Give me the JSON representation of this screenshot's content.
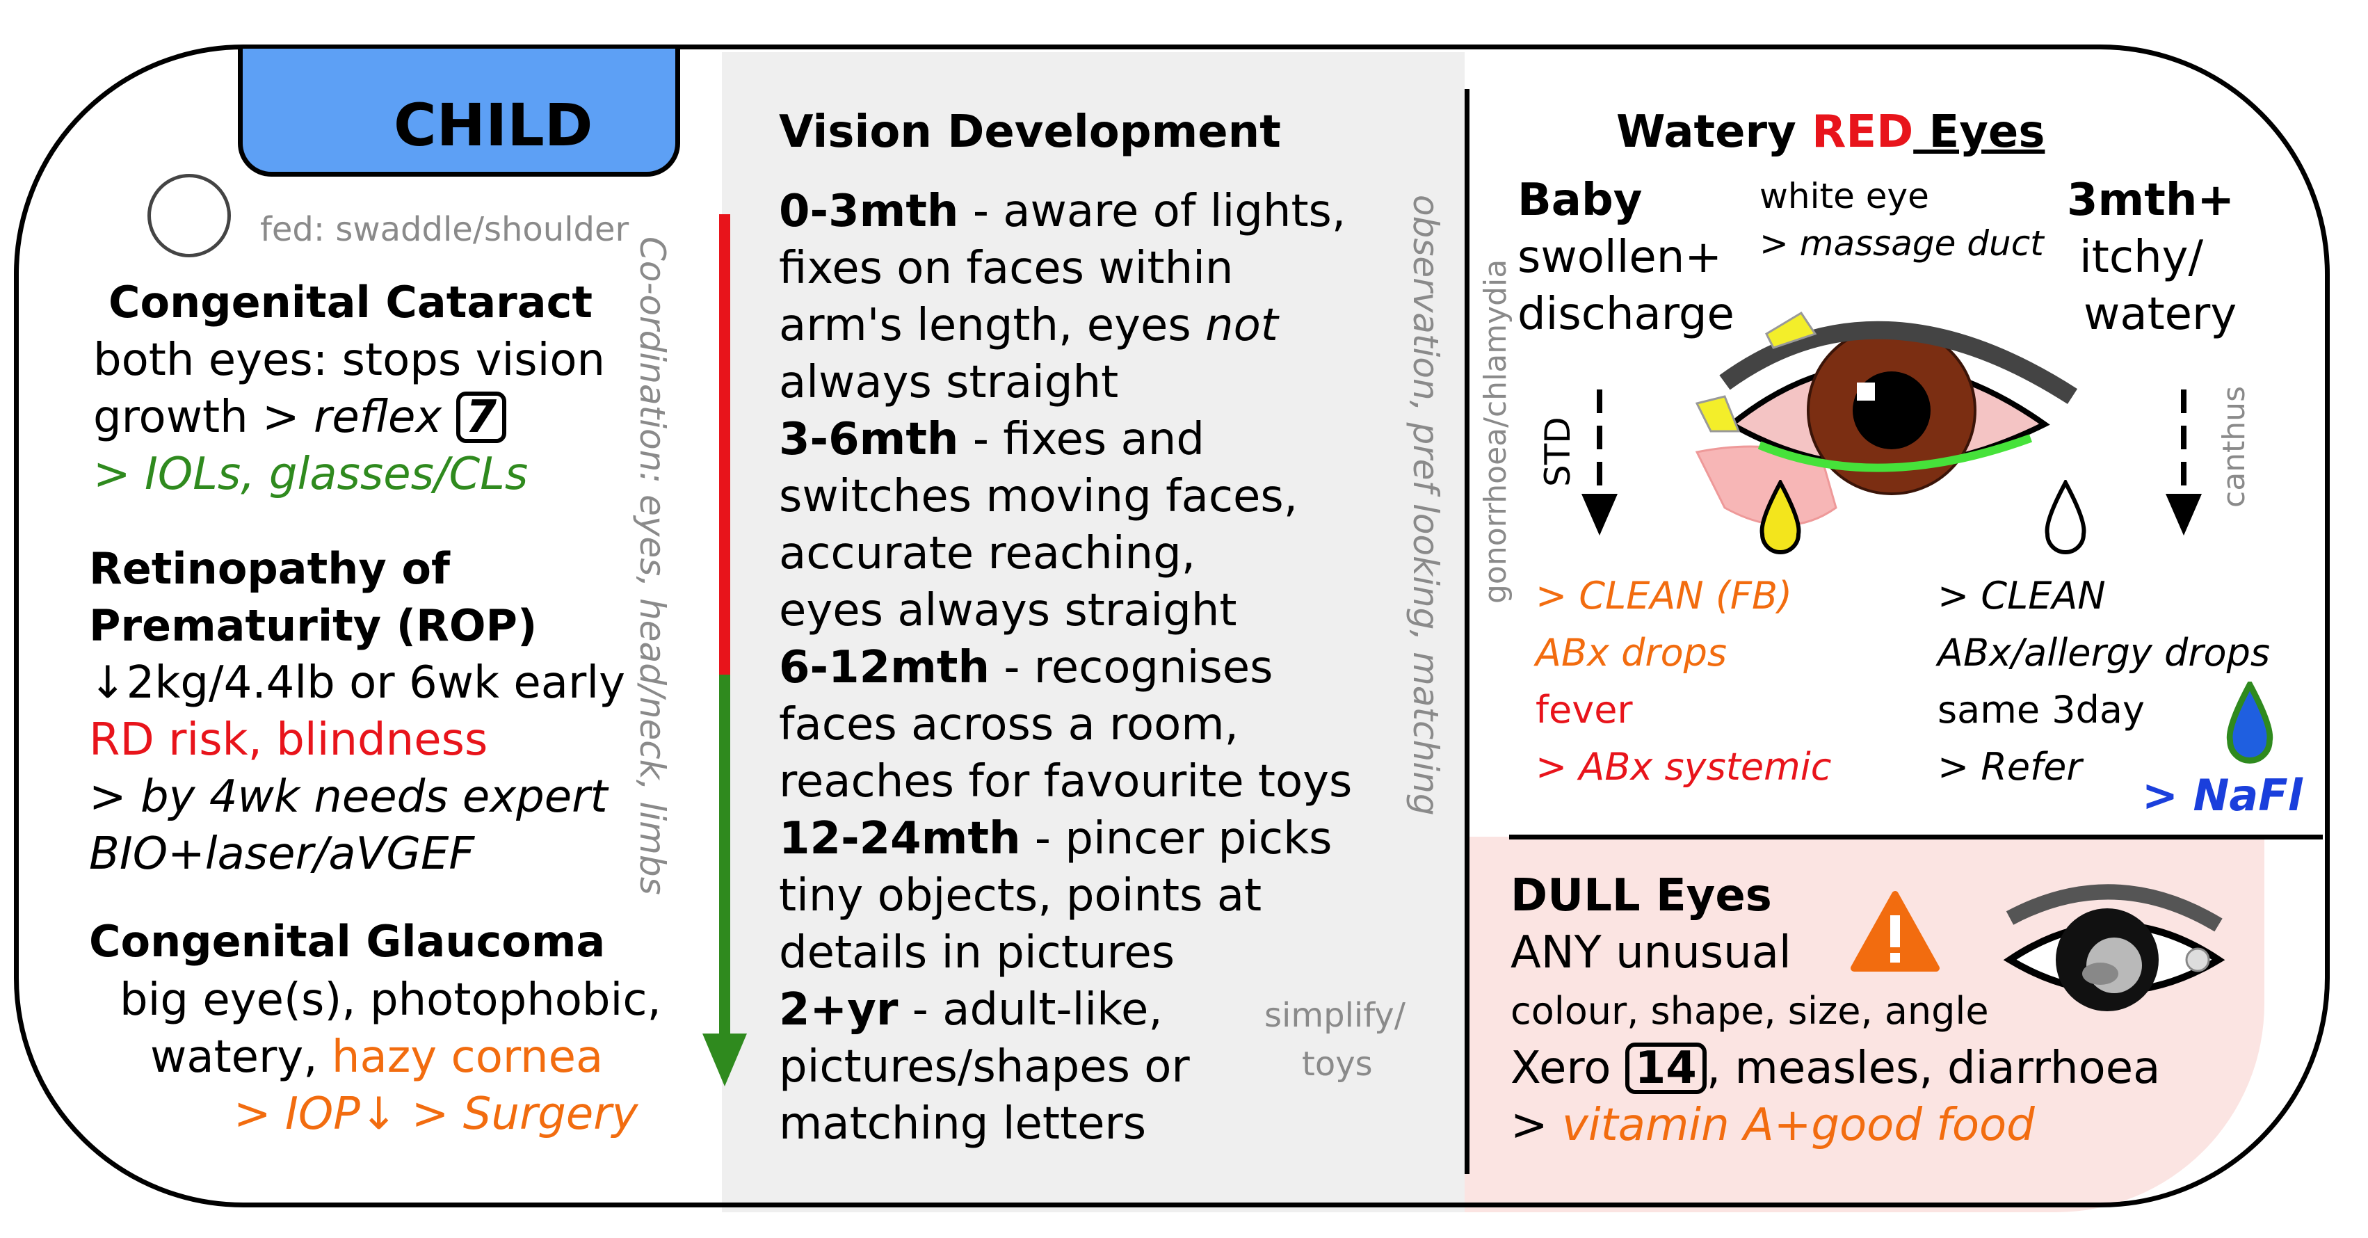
{
  "child_tab": {
    "label": "CHILD"
  },
  "left": {
    "fed_note": "fed: swaddle/shoulder",
    "cataract": {
      "title": "Congenital Cataract",
      "line1": "both eyes: stops vision",
      "line2_prefix": "growth > ",
      "line2_italic": "reflex",
      "line2_box": "7",
      "line3": "> IOLs, glasses/CLs"
    },
    "rop": {
      "title1": "Retinopathy of",
      "title2": "Prematurity (ROP)",
      "line1": "↓2kg/4.4lb or 6wk early",
      "line2": "RD risk, blindness",
      "line3": "> by 4wk needs expert",
      "line4": "BIO+laser/aVGEF"
    },
    "glaucoma": {
      "title": "Congenital Glaucoma",
      "line1": "big eye(s), photophobic,",
      "line2_prefix": "watery, ",
      "line2_colored": "hazy cornea",
      "line3": "> IOP↓ > Surgery"
    },
    "vertical_note": "Co-ordination: eyes, head/neck, limbs"
  },
  "middle": {
    "title": "Vision Development",
    "stages": [
      {
        "age": "0-3mth",
        "lines": [
          " - aware of lights,",
          "fixes on faces within",
          "arm's length, eyes ",
          "always straight"
        ],
        "italic_word": "not"
      },
      {
        "age": "3-6mth",
        "lines": [
          " - fixes and",
          "switches moving faces,",
          "accurate reaching,",
          "eyes always straight"
        ]
      },
      {
        "age": "6-12mth",
        "lines": [
          " - recognises",
          "faces across a room,",
          "reaches for favourite toys"
        ]
      },
      {
        "age": "12-24mth",
        "lines": [
          " - pincer picks",
          "tiny objects, points at",
          "details in pictures"
        ]
      },
      {
        "age": "2+yr",
        "lines": [
          " - adult-like,",
          "pictures/shapes or",
          "matching letters"
        ]
      }
    ],
    "vertical_note": "observation, pref looking, matching",
    "simplify_note": "simplify/",
    "toys_note": "toys"
  },
  "right": {
    "title_prefix": "Watery ",
    "title_red": "RED",
    "title_suffix": " Eyes",
    "baby": {
      "title": "Baby",
      "line1": "swollen+",
      "line2": "discharge"
    },
    "white_eye": {
      "line1": "white eye",
      "line2": "> massage duct"
    },
    "older": {
      "title": "3mth+",
      "line1": "itchy/",
      "line2": "watery"
    },
    "vertical_left": "gonorrhoea/chlamydia",
    "std_label": "STD",
    "vertical_right": "canthus",
    "baby_tx": [
      "> CLEAN (FB)",
      "ABx drops",
      "fever",
      "> ABx systemic"
    ],
    "older_tx": [
      "> CLEAN",
      "ABx/allergy drops",
      "same 3day",
      "> Refer"
    ],
    "nafl": "> NaFl"
  },
  "dull": {
    "title": "DULL Eyes",
    "line1": "ANY unusual",
    "line2": "colour, shape, size, angle",
    "line3_prefix": "Xero ",
    "line3_box": "14",
    "line3_suffix": ", measles, diarrhoea",
    "line4_prefix": "> ",
    "line4_colored": "vitamin A+good food"
  },
  "colors": {
    "tab_blue": "#5da0f5",
    "middle_bg": "#efefef",
    "dull_bg": "#fbe4e2",
    "red": "#e8141b",
    "green": "#2f8a1e",
    "orange": "#f26c0f",
    "blue": "#1a3fdc"
  }
}
